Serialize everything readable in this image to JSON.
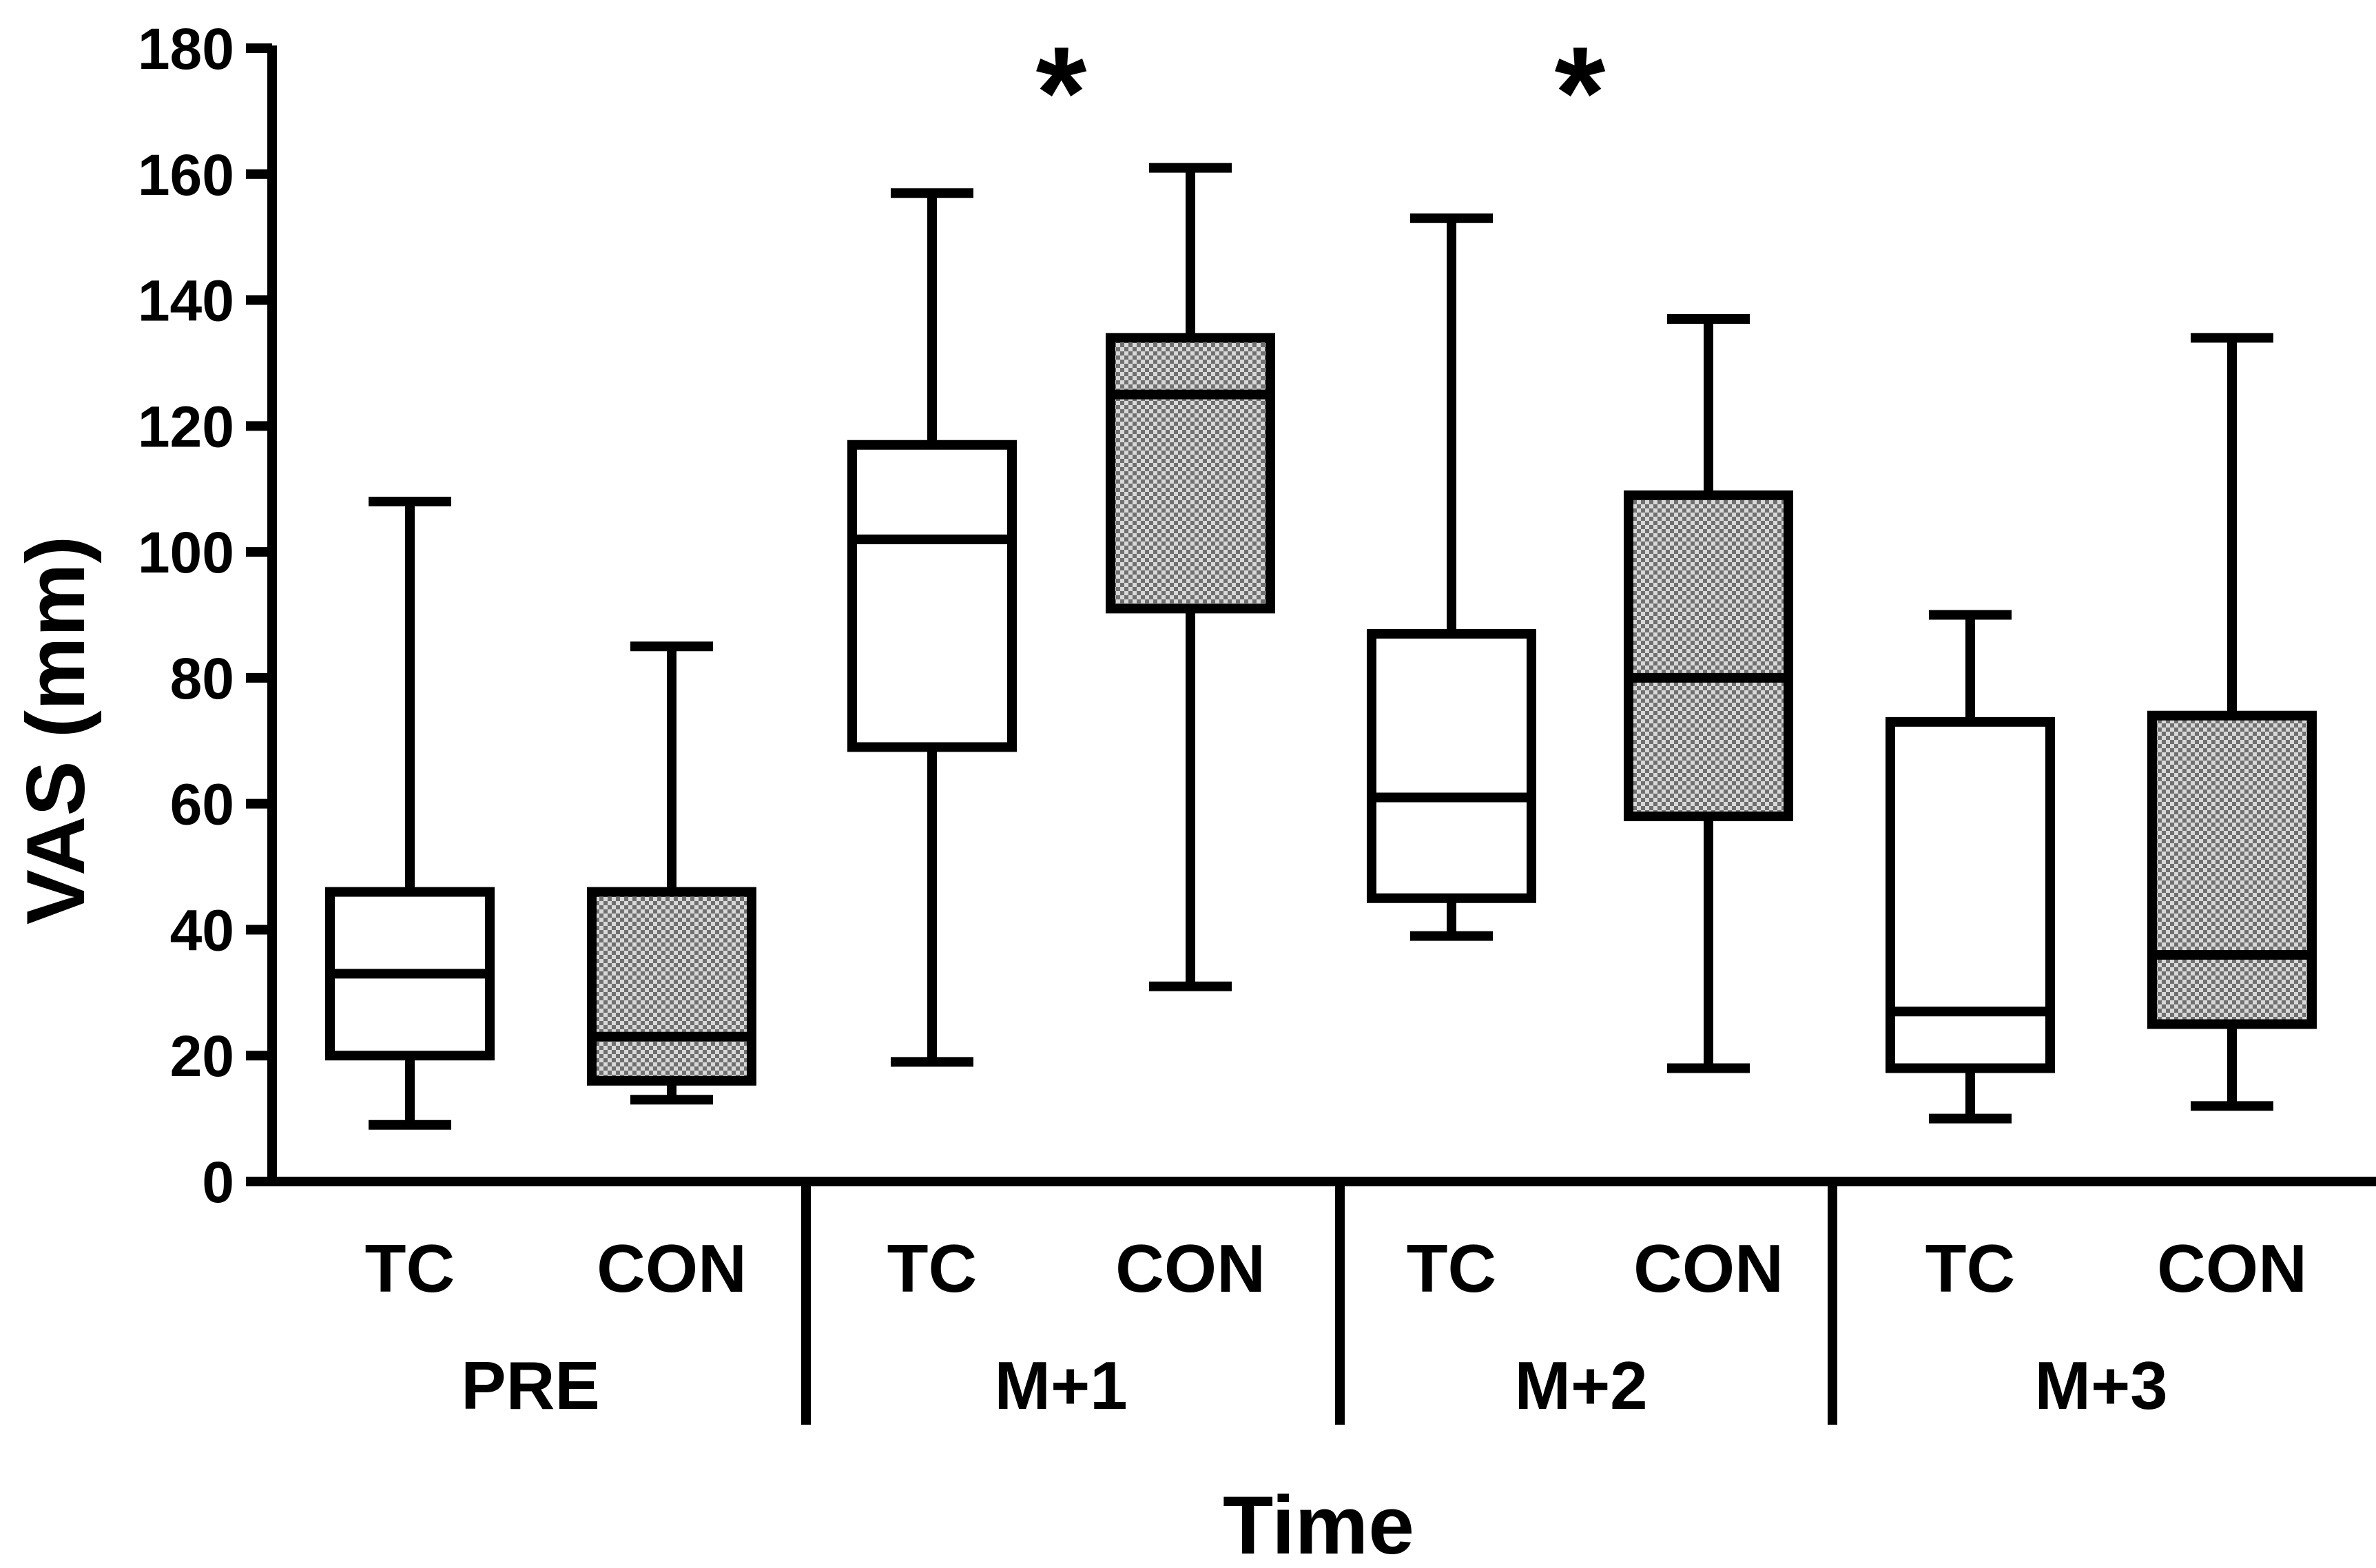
{
  "chart_data": {
    "type": "box",
    "title": "",
    "xlabel": "Time",
    "ylabel": "VAS (mm)",
    "ylim": [
      0,
      180
    ],
    "yticks": [
      0,
      20,
      40,
      60,
      80,
      100,
      120,
      140,
      160,
      180
    ],
    "grid": false,
    "groups": [
      {
        "label": "PRE",
        "significance": "",
        "boxes": [
          {
            "category": "TC",
            "fill": "white",
            "min": 9,
            "q1": 20,
            "median": 33,
            "q3": 46,
            "max": 108
          },
          {
            "category": "CON",
            "fill": "gray",
            "min": 13,
            "q1": 16,
            "median": 23,
            "q3": 46,
            "max": 85
          }
        ]
      },
      {
        "label": "M+1",
        "significance": "*",
        "boxes": [
          {
            "category": "TC",
            "fill": "white",
            "min": 19,
            "q1": 69,
            "median": 102,
            "q3": 117,
            "max": 157
          },
          {
            "category": "CON",
            "fill": "gray",
            "min": 31,
            "q1": 91,
            "median": 125,
            "q3": 134,
            "max": 161
          }
        ]
      },
      {
        "label": "M+2",
        "significance": "*",
        "boxes": [
          {
            "category": "TC",
            "fill": "white",
            "min": 39,
            "q1": 45,
            "median": 61,
            "q3": 87,
            "max": 153
          },
          {
            "category": "CON",
            "fill": "gray",
            "min": 18,
            "q1": 58,
            "median": 80,
            "q3": 109,
            "max": 137
          }
        ]
      },
      {
        "label": "M+3",
        "significance": "",
        "boxes": [
          {
            "category": "TC",
            "fill": "white",
            "min": 10,
            "q1": 18,
            "median": 27,
            "q3": 73,
            "max": 90
          },
          {
            "category": "CON",
            "fill": "gray",
            "min": 12,
            "q1": 25,
            "median": 36,
            "q3": 74,
            "max": 134
          }
        ]
      }
    ],
    "colors": {
      "stroke": "#000000",
      "white_fill": "#ffffff",
      "gray_fill": "#9a9a9a"
    }
  }
}
